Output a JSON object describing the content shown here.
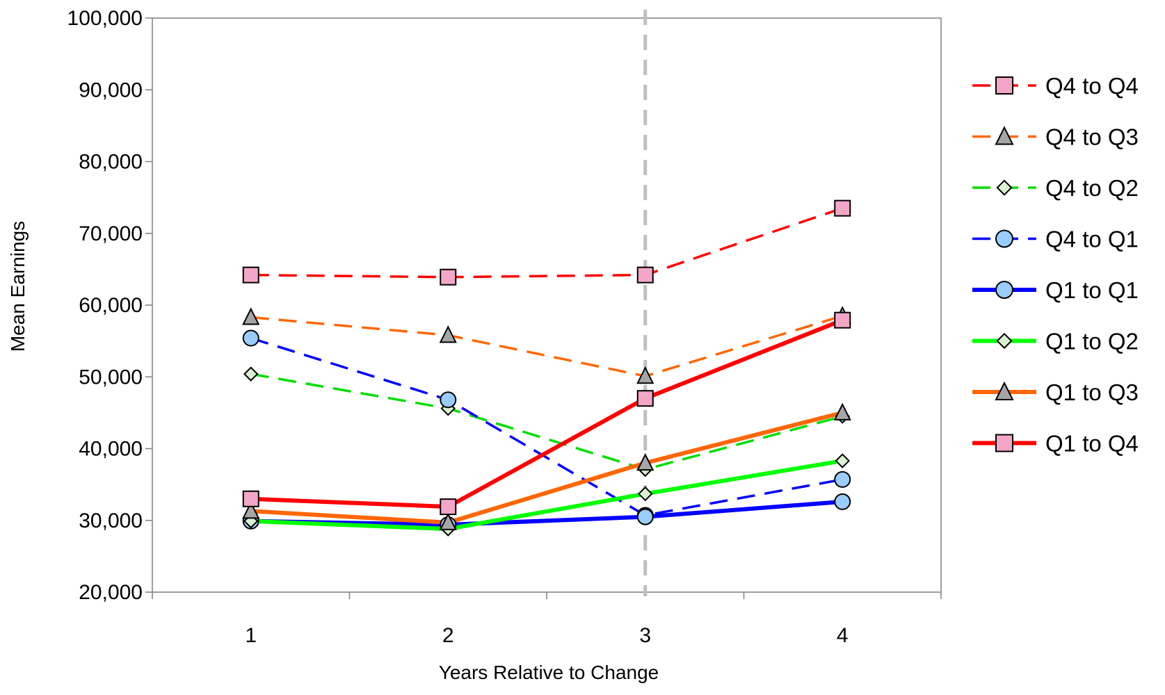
{
  "chart_data": {
    "type": "line",
    "title": "",
    "xlabel": "Years Relative to Change",
    "ylabel": "Mean Earnings",
    "x": [
      1,
      2,
      3,
      4
    ],
    "x_tick_labels": [
      "1",
      "2",
      "3",
      "4"
    ],
    "xlim": [
      0.5,
      4.5
    ],
    "ylim": [
      20000,
      100000
    ],
    "y_ticks": [
      20000,
      30000,
      40000,
      50000,
      60000,
      70000,
      80000,
      90000,
      100000
    ],
    "y_tick_labels": [
      "20,000",
      "30,000",
      "40,000",
      "50,000",
      "60,000",
      "70,000",
      "80,000",
      "90,000",
      "100,000"
    ],
    "grid": false,
    "legend_position": "right",
    "reference_line": {
      "x": 3.0,
      "style": "dashed",
      "color": "#bfbfbf"
    },
    "series": [
      {
        "name": "Q4 to Q4",
        "values": [
          64200,
          63900,
          64200,
          73500
        ],
        "color": "#ff0000",
        "dash": true,
        "marker": "square",
        "marker_fill": "#f4a6c8"
      },
      {
        "name": "Q4 to Q3",
        "values": [
          58300,
          55800,
          50100,
          58500
        ],
        "color": "#ff6600",
        "dash": true,
        "marker": "triangle",
        "marker_fill": "#a6a6a6"
      },
      {
        "name": "Q4 to Q2",
        "values": [
          50400,
          45600,
          37100,
          44500
        ],
        "color": "#00dd00",
        "dash": true,
        "marker": "diamond",
        "marker_fill": "#d9f2d0"
      },
      {
        "name": "Q4 to Q1",
        "values": [
          55400,
          46800,
          30700,
          35700
        ],
        "color": "#0000ff",
        "dash": true,
        "marker": "circle",
        "marker_fill": "#99ccff"
      },
      {
        "name": "Q1 to Q1",
        "values": [
          29900,
          29400,
          30500,
          32600
        ],
        "color": "#0000ff",
        "dash": false,
        "marker": "circle",
        "marker_fill": "#99ccff"
      },
      {
        "name": "Q1 to Q2",
        "values": [
          29900,
          28800,
          33700,
          38300
        ],
        "color": "#00ff00",
        "dash": false,
        "marker": "diamond",
        "marker_fill": "#d9f2d0"
      },
      {
        "name": "Q1 to Q3",
        "values": [
          31300,
          29700,
          38000,
          45000
        ],
        "color": "#ff6600",
        "dash": false,
        "marker": "triangle",
        "marker_fill": "#a6a6a6"
      },
      {
        "name": "Q1 to Q4",
        "values": [
          33000,
          31900,
          47000,
          57900
        ],
        "color": "#ff0000",
        "dash": false,
        "marker": "square",
        "marker_fill": "#f4a6c8"
      }
    ]
  }
}
